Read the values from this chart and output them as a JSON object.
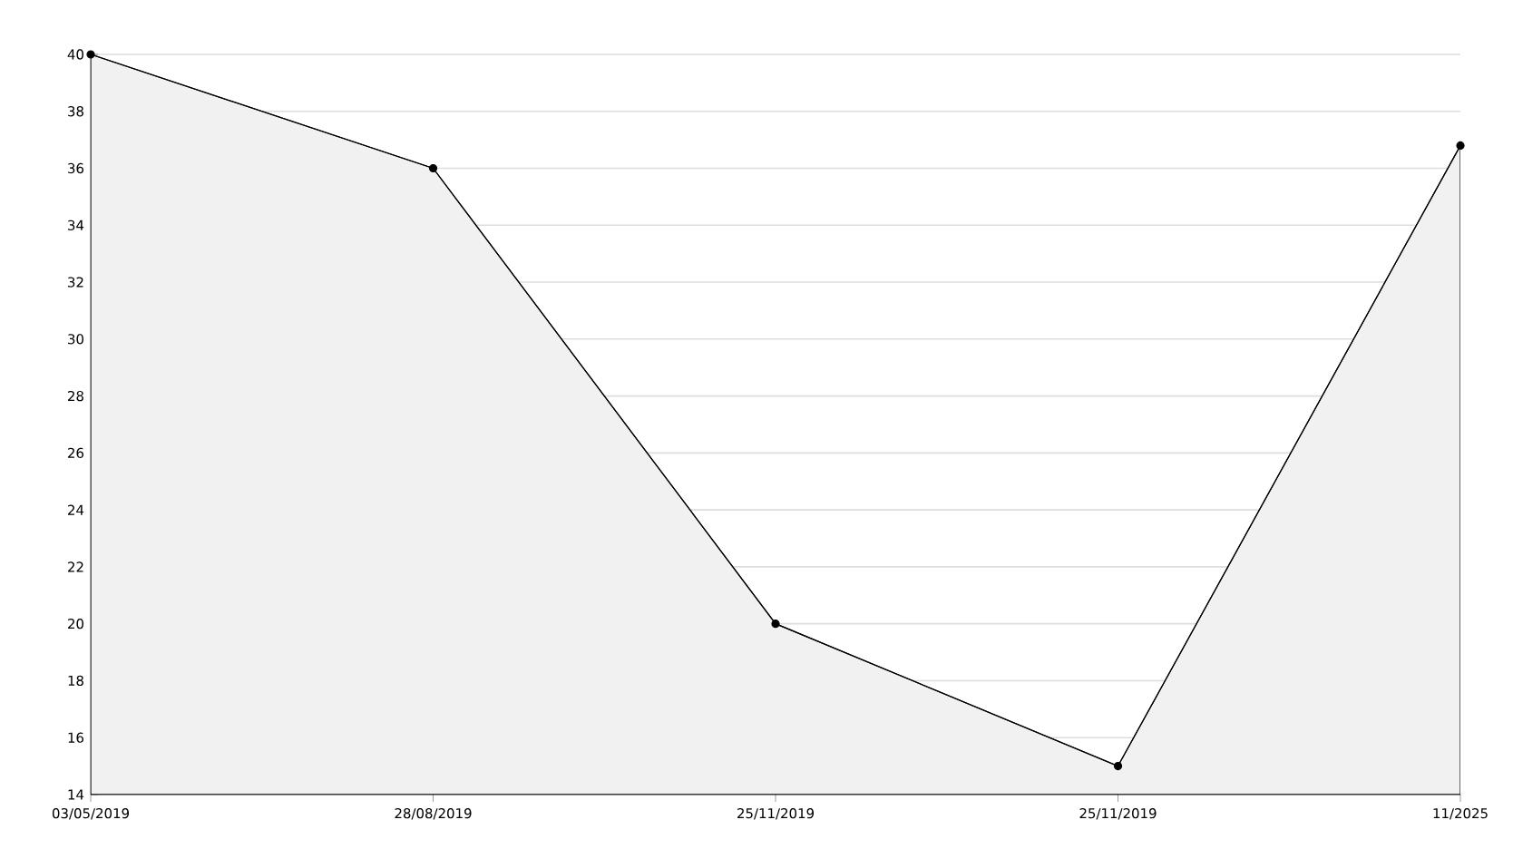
{
  "chart_data": {
    "type": "area",
    "categories": [
      "03/05/2019",
      "28/08/2019",
      "25/11/2019",
      "25/11/2019",
      "11/2025"
    ],
    "values": [
      40,
      36,
      20,
      15,
      36.8
    ],
    "color": "#000000",
    "ylim": [
      14,
      40
    ],
    "yticks": [
      14,
      16,
      18,
      20,
      22,
      24,
      26,
      28,
      30,
      32,
      34,
      36,
      38,
      40
    ],
    "grid": "y",
    "marker": "circle",
    "line_style": "solid"
  }
}
